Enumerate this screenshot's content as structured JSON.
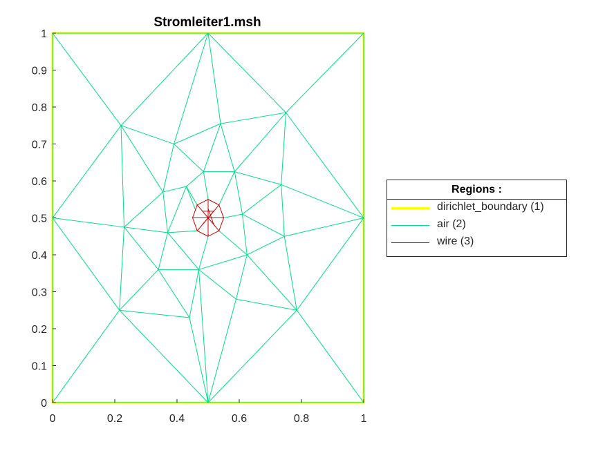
{
  "chart_data": {
    "type": "mesh",
    "title": "Stromleiter1.msh",
    "xlim": [
      0,
      1
    ],
    "ylim": [
      0,
      1
    ],
    "x_ticks": [
      "0",
      "0.2",
      "0.4",
      "0.6",
      "0.8",
      "1"
    ],
    "y_ticks": [
      "0",
      "0.1",
      "0.2",
      "0.3",
      "0.4",
      "0.5",
      "0.6",
      "0.7",
      "0.8",
      "0.9",
      "1"
    ],
    "grid": false,
    "legend": {
      "title": "Regions :",
      "placement": "right",
      "entries": [
        {
          "label": "dirichlet_boundary (1)",
          "color": "#ffff00",
          "width": 3
        },
        {
          "label": "air (2)",
          "color": "#00dd88",
          "width": 1
        },
        {
          "label": "wire (3)",
          "color": "#cc0000",
          "width": 1
        }
      ]
    },
    "series": [
      {
        "name": "dirichlet_boundary (1)",
        "color": "#ffff00",
        "edges": [
          [
            [
              0,
              0
            ],
            [
              1,
              0
            ]
          ],
          [
            [
              1,
              0
            ],
            [
              1,
              1
            ]
          ],
          [
            [
              1,
              1
            ],
            [
              0,
              1
            ]
          ],
          [
            [
              0,
              1
            ],
            [
              0,
              0
            ]
          ]
        ]
      },
      {
        "name": "air (2)",
        "color": "#00dd88",
        "edges": [
          [
            [
              0,
              1
            ],
            [
              0.5,
              1
            ]
          ],
          [
            [
              0.5,
              1
            ],
            [
              1,
              1
            ]
          ],
          [
            [
              0,
              0.5
            ],
            [
              0,
              1
            ]
          ],
          [
            [
              0,
              0
            ],
            [
              0,
              0.5
            ]
          ],
          [
            [
              1,
              0.5
            ],
            [
              1,
              1
            ]
          ],
          [
            [
              1,
              0
            ],
            [
              1,
              0.5
            ]
          ],
          [
            [
              0,
              0
            ],
            [
              0.5,
              0
            ]
          ],
          [
            [
              0.5,
              0
            ],
            [
              1,
              0
            ]
          ],
          [
            [
              0,
              1
            ],
            [
              0.22,
              0.75
            ]
          ],
          [
            [
              0.5,
              1
            ],
            [
              0.22,
              0.75
            ]
          ],
          [
            [
              0.5,
              1
            ],
            [
              0.75,
              0.785
            ]
          ],
          [
            [
              1,
              1
            ],
            [
              0.75,
              0.785
            ]
          ],
          [
            [
              1,
              0.5
            ],
            [
              0.75,
              0.785
            ]
          ],
          [
            [
              1,
              0.5
            ],
            [
              0.785,
              0.25
            ]
          ],
          [
            [
              1,
              0
            ],
            [
              0.785,
              0.25
            ]
          ],
          [
            [
              0.5,
              0
            ],
            [
              0.785,
              0.25
            ]
          ],
          [
            [
              0.5,
              0
            ],
            [
              0.215,
              0.25
            ]
          ],
          [
            [
              0,
              0
            ],
            [
              0.215,
              0.25
            ]
          ],
          [
            [
              0,
              0.5
            ],
            [
              0.215,
              0.25
            ]
          ],
          [
            [
              0,
              0.5
            ],
            [
              0.22,
              0.75
            ]
          ],
          [
            [
              0.5,
              1
            ],
            [
              0.39,
              0.7
            ]
          ],
          [
            [
              0.5,
              1
            ],
            [
              0.54,
              0.755
            ]
          ],
          [
            [
              0.22,
              0.75
            ],
            [
              0.39,
              0.7
            ]
          ],
          [
            [
              0.39,
              0.7
            ],
            [
              0.54,
              0.755
            ]
          ],
          [
            [
              0.54,
              0.755
            ],
            [
              0.75,
              0.785
            ]
          ],
          [
            [
              0.75,
              0.785
            ],
            [
              0.735,
              0.59
            ]
          ],
          [
            [
              1,
              0.5
            ],
            [
              0.735,
              0.59
            ]
          ],
          [
            [
              1,
              0.5
            ],
            [
              0.745,
              0.45
            ]
          ],
          [
            [
              0.745,
              0.45
            ],
            [
              0.785,
              0.25
            ]
          ],
          [
            [
              0.785,
              0.25
            ],
            [
              0.625,
              0.4
            ]
          ],
          [
            [
              0.785,
              0.25
            ],
            [
              0.59,
              0.28
            ]
          ],
          [
            [
              0.59,
              0.28
            ],
            [
              0.5,
              0
            ]
          ],
          [
            [
              0.5,
              0
            ],
            [
              0.47,
              0.36
            ]
          ],
          [
            [
              0.5,
              0
            ],
            [
              0.44,
              0.23
            ]
          ],
          [
            [
              0.44,
              0.23
            ],
            [
              0.215,
              0.25
            ]
          ],
          [
            [
              0.215,
              0.25
            ],
            [
              0.34,
              0.36
            ]
          ],
          [
            [
              0.215,
              0.25
            ],
            [
              0.23,
              0.475
            ]
          ],
          [
            [
              0,
              0.5
            ],
            [
              0.23,
              0.475
            ]
          ],
          [
            [
              0.23,
              0.475
            ],
            [
              0.22,
              0.75
            ]
          ],
          [
            [
              0.22,
              0.75
            ],
            [
              0.355,
              0.57
            ]
          ],
          [
            [
              0.39,
              0.7
            ],
            [
              0.355,
              0.57
            ]
          ],
          [
            [
              0.39,
              0.7
            ],
            [
              0.485,
              0.625
            ]
          ],
          [
            [
              0.54,
              0.755
            ],
            [
              0.485,
              0.625
            ]
          ],
          [
            [
              0.54,
              0.755
            ],
            [
              0.585,
              0.625
            ]
          ],
          [
            [
              0.585,
              0.625
            ],
            [
              0.75,
              0.785
            ]
          ],
          [
            [
              0.585,
              0.625
            ],
            [
              0.735,
              0.59
            ]
          ],
          [
            [
              0.735,
              0.59
            ],
            [
              0.745,
              0.45
            ]
          ],
          [
            [
              0.735,
              0.59
            ],
            [
              0.61,
              0.51
            ]
          ],
          [
            [
              0.745,
              0.45
            ],
            [
              0.61,
              0.51
            ]
          ],
          [
            [
              0.745,
              0.45
            ],
            [
              0.625,
              0.4
            ]
          ],
          [
            [
              0.625,
              0.4
            ],
            [
              0.59,
              0.28
            ]
          ],
          [
            [
              0.59,
              0.28
            ],
            [
              0.47,
              0.36
            ]
          ],
          [
            [
              0.44,
              0.23
            ],
            [
              0.47,
              0.36
            ]
          ],
          [
            [
              0.44,
              0.23
            ],
            [
              0.34,
              0.36
            ]
          ],
          [
            [
              0.34,
              0.36
            ],
            [
              0.23,
              0.475
            ]
          ],
          [
            [
              0.23,
              0.475
            ],
            [
              0.37,
              0.46
            ]
          ],
          [
            [
              0.23,
              0.475
            ],
            [
              0.355,
              0.57
            ]
          ],
          [
            [
              0.355,
              0.57
            ],
            [
              0.37,
              0.46
            ]
          ],
          [
            [
              0.34,
              0.36
            ],
            [
              0.37,
              0.46
            ]
          ],
          [
            [
              0.34,
              0.36
            ],
            [
              0.47,
              0.36
            ]
          ],
          [
            [
              0.355,
              0.57
            ],
            [
              0.43,
              0.585
            ]
          ],
          [
            [
              0.43,
              0.585
            ],
            [
              0.485,
              0.625
            ]
          ],
          [
            [
              0.485,
              0.625
            ],
            [
              0.585,
              0.625
            ]
          ],
          [
            [
              0.585,
              0.625
            ],
            [
              0.61,
              0.51
            ]
          ],
          [
            [
              0.61,
              0.51
            ],
            [
              0.625,
              0.4
            ]
          ],
          [
            [
              0.625,
              0.4
            ],
            [
              0.47,
              0.36
            ]
          ],
          [
            [
              0.37,
              0.46
            ],
            [
              0.47,
              0.36
            ]
          ],
          [
            [
              0.43,
              0.585
            ],
            [
              0.37,
              0.46
            ]
          ],
          [
            [
              0.43,
              0.585
            ],
            [
              0.46,
              0.52
            ]
          ],
          [
            [
              0.485,
              0.625
            ],
            [
              0.5,
              0.55
            ]
          ],
          [
            [
              0.585,
              0.625
            ],
            [
              0.535,
              0.535
            ]
          ],
          [
            [
              0.61,
              0.51
            ],
            [
              0.55,
              0.5
            ]
          ],
          [
            [
              0.625,
              0.4
            ],
            [
              0.535,
              0.465
            ]
          ],
          [
            [
              0.47,
              0.36
            ],
            [
              0.5,
              0.45
            ]
          ],
          [
            [
              0.37,
              0.46
            ],
            [
              0.465,
              0.465
            ]
          ],
          [
            [
              0.43,
              0.585
            ],
            [
              0.465,
              0.535
            ]
          ]
        ]
      },
      {
        "name": "wire (3)",
        "color": "#cc0000",
        "edges": [
          [
            [
              0.5,
              0.55
            ],
            [
              0.535,
              0.535
            ]
          ],
          [
            [
              0.535,
              0.535
            ],
            [
              0.55,
              0.5
            ]
          ],
          [
            [
              0.55,
              0.5
            ],
            [
              0.535,
              0.465
            ]
          ],
          [
            [
              0.535,
              0.465
            ],
            [
              0.5,
              0.45
            ]
          ],
          [
            [
              0.5,
              0.45
            ],
            [
              0.465,
              0.465
            ]
          ],
          [
            [
              0.465,
              0.465
            ],
            [
              0.45,
              0.5
            ]
          ],
          [
            [
              0.45,
              0.5
            ],
            [
              0.465,
              0.535
            ]
          ],
          [
            [
              0.465,
              0.535
            ],
            [
              0.5,
              0.55
            ]
          ],
          [
            [
              0.5,
              0.5
            ],
            [
              0.5,
              0.55
            ]
          ],
          [
            [
              0.5,
              0.5
            ],
            [
              0.535,
              0.535
            ]
          ],
          [
            [
              0.5,
              0.5
            ],
            [
              0.55,
              0.5
            ]
          ],
          [
            [
              0.5,
              0.5
            ],
            [
              0.535,
              0.465
            ]
          ],
          [
            [
              0.5,
              0.5
            ],
            [
              0.5,
              0.45
            ]
          ],
          [
            [
              0.5,
              0.5
            ],
            [
              0.465,
              0.465
            ]
          ],
          [
            [
              0.5,
              0.5
            ],
            [
              0.45,
              0.5
            ]
          ],
          [
            [
              0.5,
              0.5
            ],
            [
              0.465,
              0.535
            ]
          ],
          [
            [
              0.5,
              0.525
            ],
            [
              0.518,
              0.482
            ]
          ],
          [
            [
              0.482,
              0.518
            ],
            [
              0.518,
              0.518
            ]
          ],
          [
            [
              0.482,
              0.482
            ],
            [
              0.518,
              0.518
            ]
          ],
          [
            [
              0.475,
              0.5
            ],
            [
              0.525,
              0.5
            ]
          ]
        ]
      }
    ]
  }
}
